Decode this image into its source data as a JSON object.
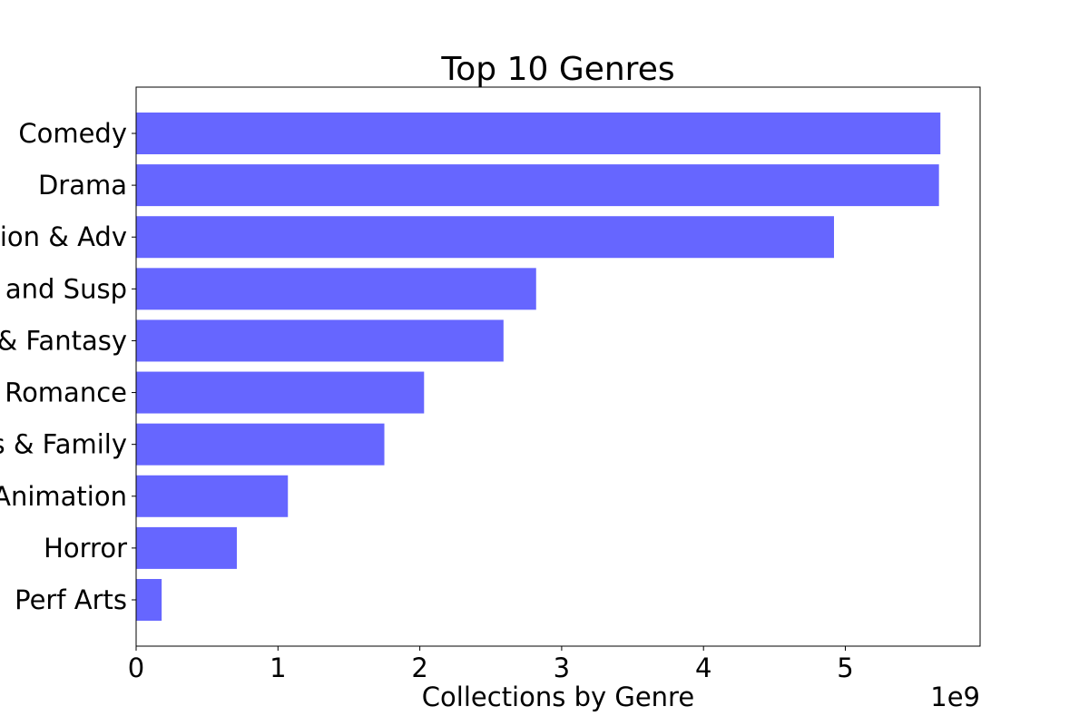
{
  "chart_data": {
    "type": "bar",
    "orientation": "horizontal",
    "title": "Top 10 Genres",
    "xlabel": "Collections by Genre",
    "ylabel": "",
    "x_offset_label": "1e9",
    "categories": [
      "Comedy",
      "Drama",
      "Action & Adv",
      "Thriller and Susp",
      "Sci-Fi & Fantasy",
      "Romance",
      "Kids & Family",
      "Animation",
      "Horror",
      "Perf Arts"
    ],
    "values": [
      5.67,
      5.66,
      4.92,
      2.82,
      2.59,
      2.03,
      1.75,
      1.07,
      0.71,
      0.18
    ],
    "value_multiplier": 1000000000,
    "x_ticks": [
      0,
      1,
      2,
      3,
      4,
      5
    ],
    "xlim": [
      0,
      5.95
    ],
    "grid": false,
    "legend": "none",
    "bar_color": "#6666ff"
  }
}
